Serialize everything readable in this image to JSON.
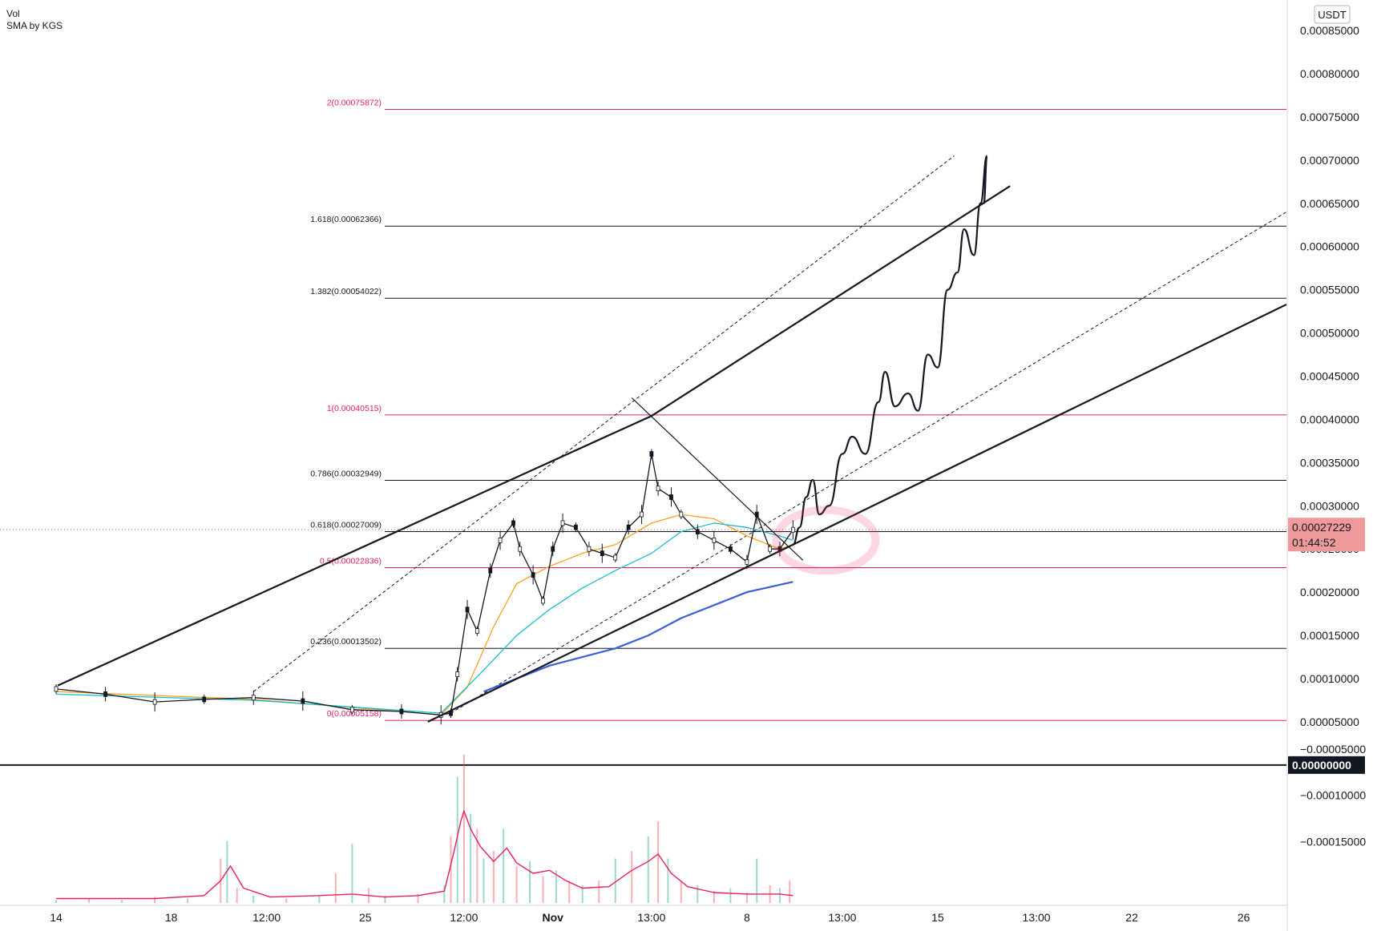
{
  "legend": {
    "line1": "Vol",
    "line2": "SMA by KGS"
  },
  "currency": "USDT",
  "price_badge": {
    "price": "0.00027229",
    "countdown": "01:44:52"
  },
  "zero_badge": "0.00000000",
  "chart_data": {
    "type": "candlestick",
    "price_axis": {
      "ylim": [
        -0.000155,
        0.00088
      ],
      "ticks": [
        "0.00085000",
        "0.00080000",
        "0.00075000",
        "0.00070000",
        "0.00065000",
        "0.00060000",
        "0.00055000",
        "0.00050000",
        "0.00045000",
        "0.00040000",
        "0.00035000",
        "0.00030000",
        "0.00025000",
        "0.00020000",
        "0.00015000",
        "0.00010000",
        "0.00005000",
        "−0.00005000",
        "−0.00010000",
        "−0.00015000"
      ],
      "tick_values": [
        0.00085,
        0.0008,
        0.00075,
        0.0007,
        0.00065,
        0.0006,
        0.00055,
        0.0005,
        0.00045,
        0.0004,
        0.00035,
        0.0003,
        0.00025,
        0.0002,
        0.00015,
        0.0001,
        5e-05,
        -5e-05,
        -0.0001,
        -0.00015
      ],
      "zero_line": 0
    },
    "time_axis": {
      "labels": [
        "14",
        "18",
        "12:00",
        "25",
        "12:00",
        "Nov",
        "13:00",
        "8",
        "13:00",
        "15",
        "13:00",
        "22",
        "26"
      ],
      "positions": [
        0,
        3.5,
        6.4,
        9.4,
        12.4,
        15.1,
        18.1,
        21.0,
        23.9,
        26.8,
        29.8,
        32.7,
        36.1
      ],
      "bold": [
        "Nov"
      ]
    },
    "fibonacci": [
      {
        "label": "2(0.00075872)",
        "value": 0.00075872,
        "color": "#e91e63"
      },
      {
        "label": "1.618(0.00062366)",
        "value": 0.00062366,
        "color": "#131722"
      },
      {
        "label": "1.382(0.00054022)",
        "value": 0.00054022,
        "color": "#131722"
      },
      {
        "label": "1(0.00040515)",
        "value": 0.00040515,
        "color": "#e91e63"
      },
      {
        "label": "0.786(0.00032949)",
        "value": 0.00032949,
        "color": "#131722"
      },
      {
        "label": "0.618(0.00027009)",
        "value": 0.00027009,
        "color": "#131722"
      },
      {
        "label": "0.5(0.00022836)",
        "value": 0.00022836,
        "color": "#e91e63"
      },
      {
        "label": "0.236(0.00013502)",
        "value": 0.00013502,
        "color": "#131722"
      },
      {
        "label": "0(0.00005158)",
        "value": 5.158e-05,
        "color": "#e91e63"
      }
    ],
    "current_price": 0.00027229,
    "price_series": [
      [
        0.0,
        8.8e-05
      ],
      [
        1.5,
        8.2e-05
      ],
      [
        3.0,
        7.3e-05
      ],
      [
        4.5,
        7.6e-05
      ],
      [
        6.0,
        7.8e-05
      ],
      [
        7.5,
        7.4e-05
      ],
      [
        9.0,
        6.4e-05
      ],
      [
        10.5,
        6.2e-05
      ],
      [
        11.7,
        5.8e-05
      ],
      [
        12.0,
        6e-05
      ],
      [
        12.2,
        0.000105
      ],
      [
        12.5,
        0.00018
      ],
      [
        12.8,
        0.000155
      ],
      [
        13.2,
        0.000225
      ],
      [
        13.5,
        0.00026
      ],
      [
        13.9,
        0.00028
      ],
      [
        14.1,
        0.00025
      ],
      [
        14.5,
        0.00022
      ],
      [
        14.8,
        0.00019
      ],
      [
        15.1,
        0.00025
      ],
      [
        15.4,
        0.00028
      ],
      [
        15.8,
        0.000275
      ],
      [
        16.2,
        0.00025
      ],
      [
        16.6,
        0.000245
      ],
      [
        17.0,
        0.00024
      ],
      [
        17.4,
        0.000275
      ],
      [
        17.8,
        0.00029
      ],
      [
        18.1,
        0.00036
      ],
      [
        18.3,
        0.00032
      ],
      [
        18.7,
        0.00031
      ],
      [
        19.0,
        0.00029
      ],
      [
        19.5,
        0.00027
      ],
      [
        20.0,
        0.00026
      ],
      [
        20.5,
        0.00025
      ],
      [
        21.0,
        0.000235
      ],
      [
        21.3,
        0.00029
      ],
      [
        21.7,
        0.00025
      ],
      [
        22.0,
        0.00025
      ],
      [
        22.4,
        0.00027229
      ]
    ],
    "sma_yellow": [
      [
        0.0,
        8.5e-05
      ],
      [
        6.0,
        7.6e-05
      ],
      [
        11.7,
        5.8e-05
      ],
      [
        12.5,
        9e-05
      ],
      [
        13.3,
        0.00016
      ],
      [
        14.0,
        0.00021
      ],
      [
        15.0,
        0.00023
      ],
      [
        16.0,
        0.000245
      ],
      [
        17.0,
        0.000255
      ],
      [
        18.1,
        0.00028
      ],
      [
        19.0,
        0.00029
      ],
      [
        20.0,
        0.000285
      ],
      [
        21.0,
        0.000265
      ],
      [
        22.0,
        0.00025
      ],
      [
        22.4,
        0.000255
      ]
    ],
    "sma_cyan": [
      [
        0.0,
        8.2e-05
      ],
      [
        6.0,
        7.5e-05
      ],
      [
        11.7,
        6e-05
      ],
      [
        13.0,
        0.00011
      ],
      [
        14.0,
        0.00015
      ],
      [
        15.0,
        0.00018
      ],
      [
        16.0,
        0.000205
      ],
      [
        17.0,
        0.000225
      ],
      [
        18.1,
        0.000245
      ],
      [
        19.0,
        0.00027
      ],
      [
        20.0,
        0.00028
      ],
      [
        21.0,
        0.000275
      ],
      [
        22.0,
        0.000265
      ],
      [
        22.4,
        0.00026
      ]
    ],
    "sma_blue": [
      [
        13.0,
        8.5e-05
      ],
      [
        15.0,
        0.000115
      ],
      [
        17.0,
        0.000135
      ],
      [
        18.0,
        0.00015
      ],
      [
        19.0,
        0.00017
      ],
      [
        20.0,
        0.000185
      ],
      [
        21.0,
        0.0002
      ],
      [
        22.4,
        0.000212
      ]
    ],
    "channel": [
      {
        "name": "upper",
        "points": [
          [
            0.05,
            9.2e-05
          ],
          [
            18.1,
            0.000404
          ],
          [
            29.0,
            0.00067
          ]
        ]
      },
      {
        "name": "lower",
        "points": [
          [
            11.3,
            5e-05
          ],
          [
            22.4,
            0.000255
          ],
          [
            37.4,
            0.000533
          ]
        ]
      },
      {
        "name": "descending",
        "points": [
          [
            17.5,
            0.000425
          ],
          [
            22.7,
            0.000237
          ]
        ]
      }
    ],
    "dashed_lines": [
      {
        "points": [
          [
            6.0,
            8.5e-05
          ],
          [
            27.3,
            0.000705
          ]
        ]
      },
      {
        "points": [
          [
            12.0,
            6e-05
          ],
          [
            37.4,
            0.00064
          ]
        ]
      }
    ],
    "projection": [
      [
        22.4,
        0.000255
      ],
      [
        22.6,
        0.000275
      ],
      [
        22.8,
        0.00031
      ],
      [
        23.0,
        0.00033
      ],
      [
        23.2,
        0.00029
      ],
      [
        23.5,
        0.0003
      ],
      [
        23.9,
        0.00036
      ],
      [
        24.2,
        0.00038
      ],
      [
        24.6,
        0.00036
      ],
      [
        25.0,
        0.00042
      ],
      [
        25.2,
        0.000455
      ],
      [
        25.5,
        0.000415
      ],
      [
        25.9,
        0.00043
      ],
      [
        26.2,
        0.00041
      ],
      [
        26.5,
        0.000475
      ],
      [
        26.8,
        0.00046
      ],
      [
        27.1,
        0.00055
      ],
      [
        27.4,
        0.00057
      ],
      [
        27.6,
        0.00062
      ],
      [
        27.9,
        0.00059
      ],
      [
        28.1,
        0.00065
      ],
      [
        28.3,
        0.000705
      ],
      [
        28.2,
        0.00065
      ]
    ],
    "volume": {
      "ylim": [
        0,
        1
      ],
      "bars": [
        [
          0.0,
          0.02
        ],
        [
          1.0,
          0.03
        ],
        [
          2.0,
          0.02
        ],
        [
          3.0,
          0.04
        ],
        [
          4.0,
          0.03
        ],
        [
          5.0,
          0.3
        ],
        [
          5.2,
          0.42
        ],
        [
          5.5,
          0.1
        ],
        [
          6.0,
          0.05
        ],
        [
          7.0,
          0.03
        ],
        [
          8.0,
          0.05
        ],
        [
          8.5,
          0.2
        ],
        [
          9.0,
          0.4
        ],
        [
          9.5,
          0.1
        ],
        [
          10.0,
          0.05
        ],
        [
          11.0,
          0.06
        ],
        [
          11.8,
          0.12
        ],
        [
          12.0,
          0.45
        ],
        [
          12.2,
          0.85
        ],
        [
          12.4,
          1.0
        ],
        [
          12.6,
          0.6
        ],
        [
          12.8,
          0.5
        ],
        [
          13.0,
          0.3
        ],
        [
          13.3,
          0.35
        ],
        [
          13.6,
          0.5
        ],
        [
          14.0,
          0.25
        ],
        [
          14.4,
          0.28
        ],
        [
          14.8,
          0.18
        ],
        [
          15.2,
          0.22
        ],
        [
          15.6,
          0.15
        ],
        [
          16.0,
          0.12
        ],
        [
          16.5,
          0.15
        ],
        [
          17.0,
          0.3
        ],
        [
          17.5,
          0.35
        ],
        [
          18.0,
          0.45
        ],
        [
          18.3,
          0.55
        ],
        [
          18.6,
          0.3
        ],
        [
          19.0,
          0.15
        ],
        [
          19.5,
          0.12
        ],
        [
          20.0,
          0.08
        ],
        [
          20.5,
          0.1
        ],
        [
          21.0,
          0.07
        ],
        [
          21.3,
          0.3
        ],
        [
          21.7,
          0.12
        ],
        [
          22.0,
          0.1
        ],
        [
          22.3,
          0.15
        ]
      ],
      "sma": [
        [
          0.0,
          0.03
        ],
        [
          3.0,
          0.03
        ],
        [
          4.5,
          0.05
        ],
        [
          5.0,
          0.15
        ],
        [
          5.3,
          0.25
        ],
        [
          5.7,
          0.1
        ],
        [
          6.5,
          0.04
        ],
        [
          8.0,
          0.05
        ],
        [
          9.0,
          0.06
        ],
        [
          10.0,
          0.04
        ],
        [
          11.0,
          0.05
        ],
        [
          11.8,
          0.08
        ],
        [
          12.1,
          0.35
        ],
        [
          12.3,
          0.55
        ],
        [
          12.4,
          0.62
        ],
        [
          12.6,
          0.5
        ],
        [
          12.9,
          0.38
        ],
        [
          13.3,
          0.28
        ],
        [
          13.7,
          0.37
        ],
        [
          14.0,
          0.27
        ],
        [
          14.5,
          0.2
        ],
        [
          15.0,
          0.22
        ],
        [
          15.5,
          0.15
        ],
        [
          16.0,
          0.1
        ],
        [
          16.8,
          0.11
        ],
        [
          17.5,
          0.22
        ],
        [
          18.0,
          0.28
        ],
        [
          18.3,
          0.33
        ],
        [
          18.7,
          0.2
        ],
        [
          19.2,
          0.11
        ],
        [
          20.0,
          0.07
        ],
        [
          21.0,
          0.06
        ],
        [
          22.0,
          0.06
        ],
        [
          22.4,
          0.05
        ]
      ]
    },
    "highlight_circle": [
      23.4,
      0.00026
    ]
  }
}
